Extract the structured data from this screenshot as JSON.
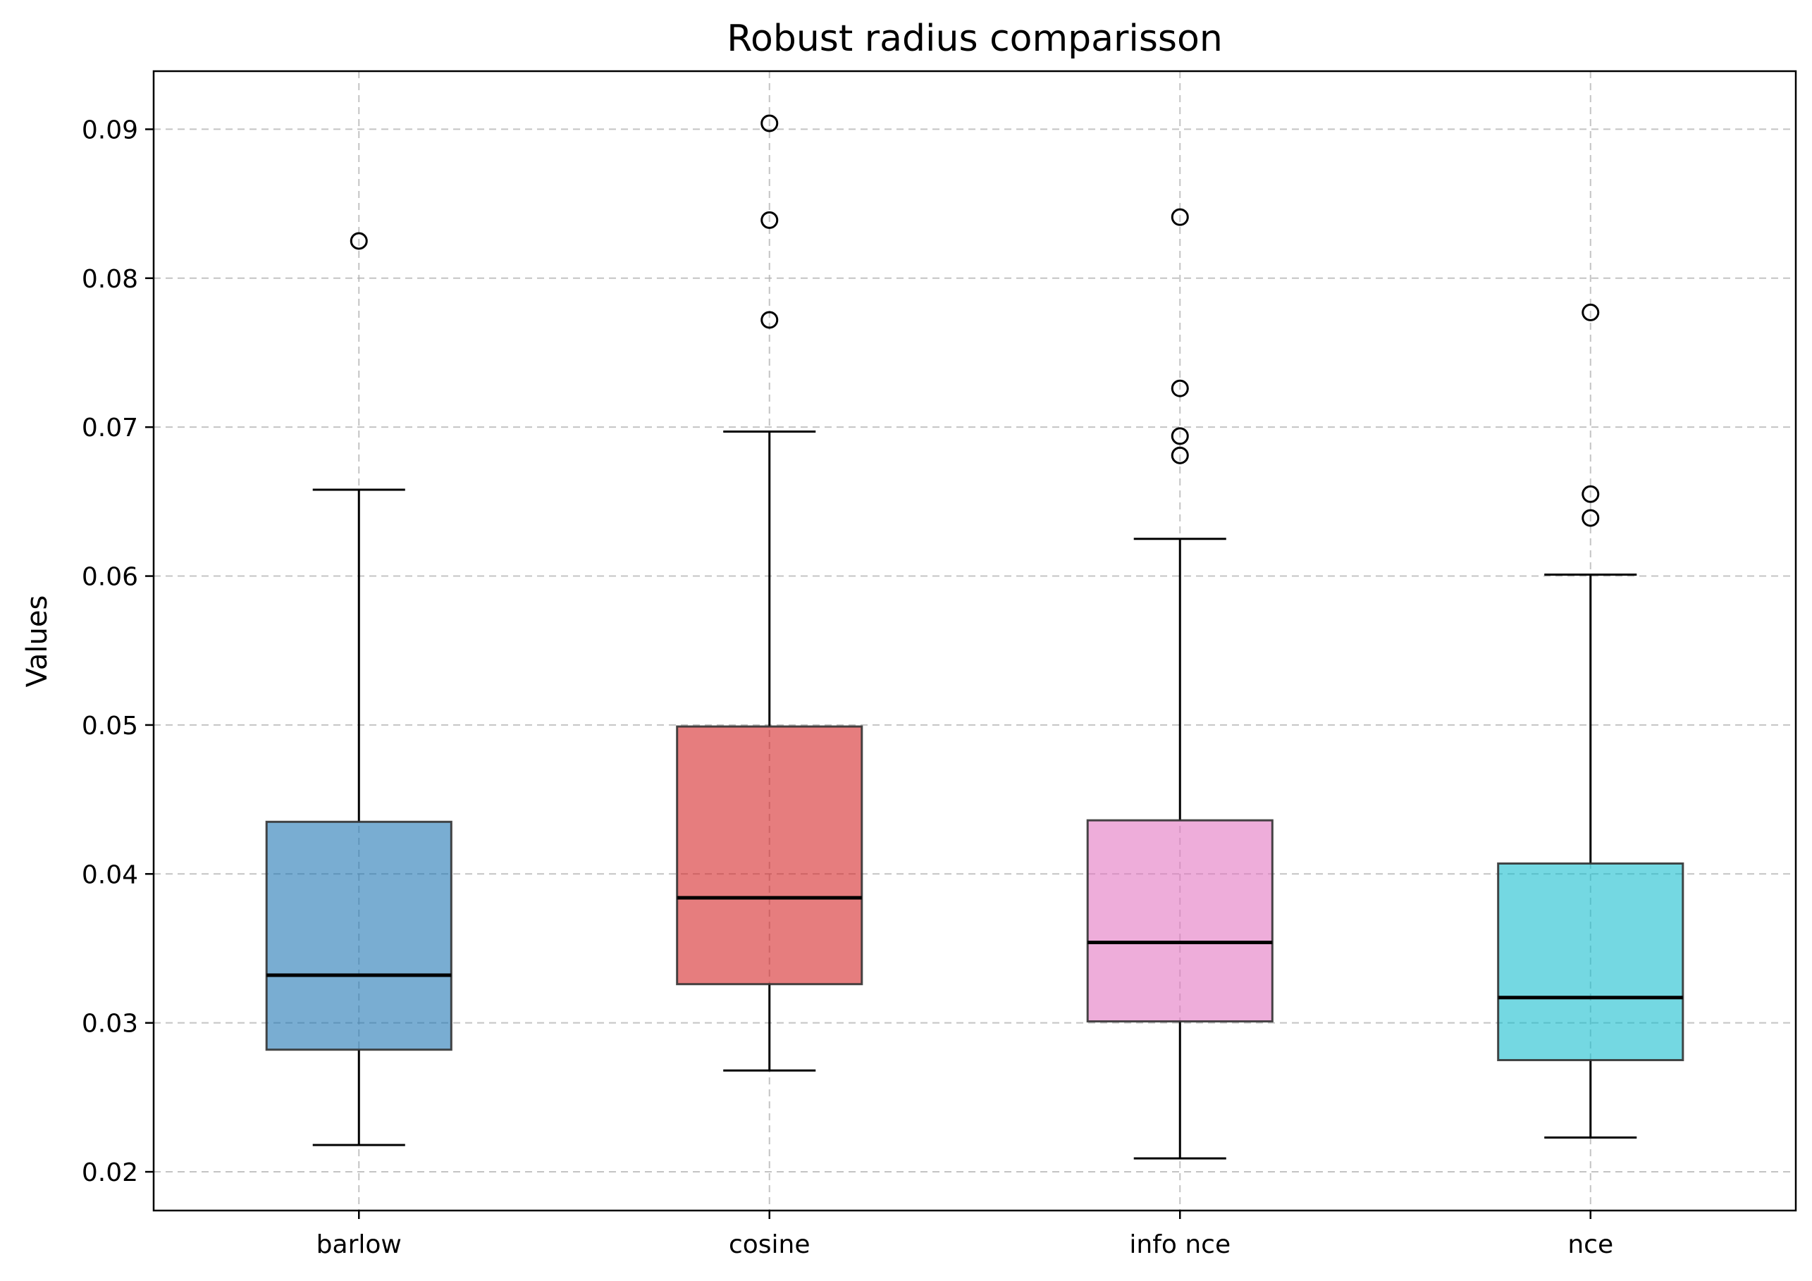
{
  "chart_data": {
    "type": "box",
    "title": "Robust radius comparisson",
    "xlabel": "",
    "ylabel": "Values",
    "ylim": [
      0.0174,
      0.0939
    ],
    "yticks": [
      0.02,
      0.03,
      0.04,
      0.05,
      0.06,
      0.07,
      0.08,
      0.09
    ],
    "ytick_labels": [
      "0.02",
      "0.03",
      "0.04",
      "0.05",
      "0.06",
      "0.07",
      "0.08",
      "0.09"
    ],
    "grid": true,
    "categories": [
      "barlow",
      "cosine",
      "info nce",
      "nce"
    ],
    "boxes": [
      {
        "category": "barlow",
        "color": "#1f77b4",
        "whisker_low": 0.0218,
        "q1": 0.0282,
        "median": 0.0332,
        "q3": 0.0435,
        "whisker_high": 0.0658,
        "outliers": [
          0.0825
        ]
      },
      {
        "category": "cosine",
        "color": "#d62728",
        "whisker_low": 0.0268,
        "q1": 0.0326,
        "median": 0.0384,
        "q3": 0.0499,
        "whisker_high": 0.0697,
        "outliers": [
          0.0904,
          0.0839,
          0.0772
        ]
      },
      {
        "category": "info nce",
        "color": "#e377c2",
        "whisker_low": 0.0209,
        "q1": 0.0301,
        "median": 0.0354,
        "q3": 0.0436,
        "whisker_high": 0.0625,
        "outliers": [
          0.0841,
          0.0726,
          0.0694,
          0.0681
        ]
      },
      {
        "category": "nce",
        "color": "#17becf",
        "whisker_low": 0.0223,
        "q1": 0.0275,
        "median": 0.0317,
        "q3": 0.0407,
        "whisker_high": 0.0601,
        "outliers": [
          0.0777,
          0.0655,
          0.0639
        ]
      }
    ]
  }
}
